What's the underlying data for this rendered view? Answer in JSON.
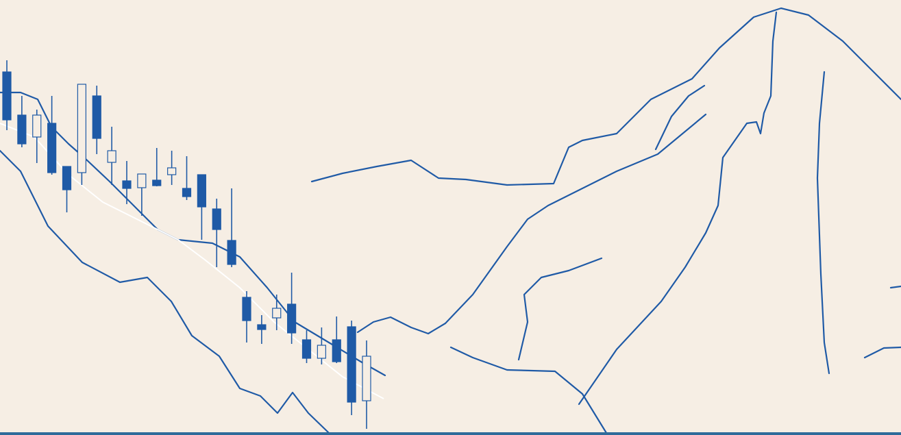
{
  "chart_data": {
    "type": "candlestick",
    "up_color": "#f6eee4",
    "down_color": "#1f5aa6",
    "edge_color": "#1f5aa6",
    "categories": [
      null,
      null,
      null,
      null,
      null,
      null,
      null,
      null,
      null,
      null,
      null,
      null,
      null,
      null,
      null,
      null,
      null,
      null,
      null,
      null,
      null,
      null,
      null,
      null,
      null
    ],
    "open": [
      530,
      467,
      435,
      455,
      392,
      383,
      495,
      398,
      371,
      361,
      372,
      380,
      360,
      380,
      330,
      284,
      201,
      161,
      171,
      191,
      139,
      112,
      139,
      158,
      50
    ],
    "high": [
      547,
      495,
      475,
      495,
      392,
      512,
      510,
      450,
      400,
      381,
      419,
      415,
      407,
      380,
      345,
      360,
      210,
      175,
      205,
      237,
      153,
      157,
      173,
      167,
      138
    ],
    "low": [
      445,
      420,
      397,
      380,
      325,
      365,
      410,
      365,
      337,
      320,
      363,
      365,
      343,
      285,
      245,
      245,
      135,
      133,
      153,
      133,
      105,
      103,
      105,
      29,
      9
    ],
    "close": [
      460,
      425,
      467,
      383,
      358,
      512,
      433,
      415,
      360,
      381,
      364,
      390,
      348,
      333,
      300,
      249,
      167,
      154,
      185,
      149,
      112,
      131,
      107,
      48,
      115
    ],
    "ylim": [
      0,
      635
    ]
  }
}
